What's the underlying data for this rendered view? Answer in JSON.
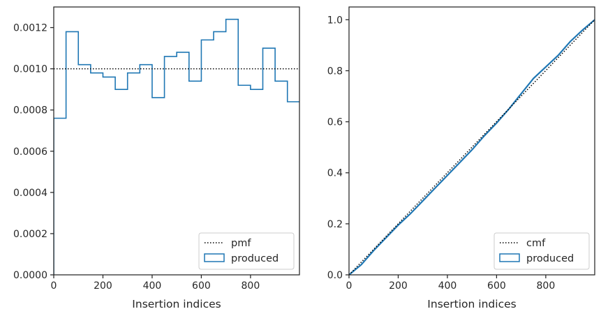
{
  "chart_data": [
    {
      "type": "histogram-step",
      "xlabel": "Insertion indices",
      "ylabel": "",
      "xlim": [
        0,
        999
      ],
      "ylim": [
        0,
        0.0013
      ],
      "xticks": [
        0,
        200,
        400,
        600,
        800
      ],
      "xtick_labels": [
        "0",
        "200",
        "400",
        "600",
        "800"
      ],
      "yticks": [
        0,
        0.0002,
        0.0004,
        0.0006,
        0.0008,
        0.001,
        0.0012
      ],
      "ytick_labels": [
        "0.0000",
        "0.0002",
        "0.0004",
        "0.0006",
        "0.0008",
        "0.0010",
        "0.0012"
      ],
      "bin_edges": [
        0,
        50,
        100,
        150,
        200,
        250,
        300,
        350,
        400,
        450,
        500,
        550,
        600,
        650,
        700,
        750,
        800,
        850,
        900,
        950,
        1000
      ],
      "series": [
        {
          "name": "produced",
          "color": "#1f77b4",
          "style": "step",
          "values": [
            0.00076,
            0.00118,
            0.00102,
            0.00098,
            0.00096,
            0.0009,
            0.00098,
            0.00102,
            0.00086,
            0.00106,
            0.00108,
            0.00094,
            0.00114,
            0.00118,
            0.00124,
            0.00092,
            0.0009,
            0.0011,
            0.00094,
            0.00084
          ]
        },
        {
          "name": "pmf",
          "color": "#000000",
          "style": "dotted",
          "x": [
            0,
            999
          ],
          "y": [
            0.001,
            0.001
          ]
        }
      ],
      "legend": {
        "placement": "bottom-right",
        "entries": [
          "pmf",
          "produced"
        ]
      }
    },
    {
      "type": "line",
      "xlabel": "Insertion indices",
      "ylabel": "",
      "xlim": [
        0,
        999
      ],
      "ylim": [
        0,
        1.05
      ],
      "xticks": [
        0,
        200,
        400,
        600,
        800
      ],
      "xtick_labels": [
        "0",
        "200",
        "400",
        "600",
        "800"
      ],
      "yticks": [
        0,
        0.2,
        0.4,
        0.6,
        0.8,
        1.0
      ],
      "ytick_labels": [
        "0.0",
        "0.2",
        "0.4",
        "0.6",
        "0.8",
        "1.0"
      ],
      "series": [
        {
          "name": "produced",
          "color": "#1f77b4",
          "style": "solid",
          "x": [
            0,
            50,
            100,
            150,
            200,
            250,
            300,
            350,
            400,
            450,
            500,
            550,
            600,
            650,
            700,
            750,
            800,
            850,
            900,
            950,
            999
          ],
          "y": [
            0.0,
            0.04,
            0.095,
            0.145,
            0.195,
            0.24,
            0.29,
            0.34,
            0.39,
            0.44,
            0.49,
            0.545,
            0.595,
            0.65,
            0.71,
            0.77,
            0.815,
            0.86,
            0.915,
            0.96,
            1.0
          ]
        },
        {
          "name": "cmf",
          "color": "#000000",
          "style": "dotted",
          "x": [
            0,
            999
          ],
          "y": [
            0,
            1.0
          ]
        }
      ],
      "legend": {
        "placement": "bottom-right",
        "entries": [
          "cmf",
          "produced"
        ]
      }
    }
  ]
}
